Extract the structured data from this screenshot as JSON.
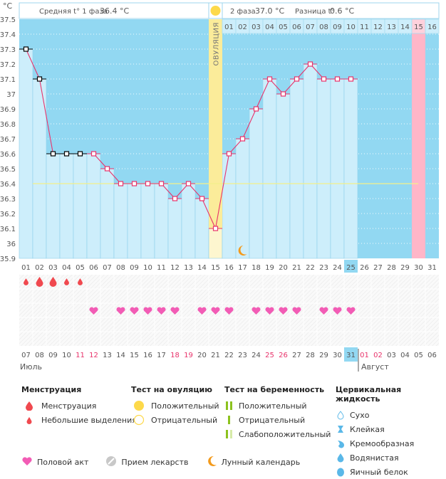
{
  "header": {
    "unit": "°C",
    "phase1_label": "Средняя t° 1 фаза",
    "phase1_value": "36.4 °C",
    "phase2_label": "2 фаза",
    "phase2_value": "37.0 °C",
    "diff_label": "Разница t°",
    "diff_value": "0.6 °C",
    "ovulation_label": "ОВУЛЯЦИЯ"
  },
  "chart_data": {
    "type": "line",
    "title": "",
    "ylabel": "°C",
    "ylim": [
      35.9,
      37.5
    ],
    "yticks": [
      "35.9",
      "36",
      "36.1",
      "36.2",
      "36.3",
      "36.4",
      "36.5",
      "36.6",
      "36.7",
      "36.8",
      "36.9",
      "37",
      "37.1",
      "37.2",
      "37.3",
      "37.4",
      "37.5"
    ],
    "x_cycle_days": [
      "01",
      "02",
      "03",
      "04",
      "05",
      "06",
      "07",
      "08",
      "09",
      "10",
      "11",
      "12",
      "13",
      "14",
      "15",
      "16",
      "17",
      "18",
      "19",
      "20",
      "21",
      "22",
      "23",
      "24",
      "25",
      "26",
      "27",
      "28",
      "29",
      "30",
      "31"
    ],
    "luteal_day_labels": [
      "01",
      "02",
      "03",
      "04",
      "05",
      "06",
      "07",
      "08",
      "09",
      "10",
      "11",
      "12",
      "13",
      "14",
      "15",
      "16"
    ],
    "calendar_dates": [
      "07",
      "08",
      "09",
      "10",
      "11",
      "12",
      "13",
      "14",
      "15",
      "16",
      "17",
      "18",
      "19",
      "20",
      "21",
      "22",
      "23",
      "24",
      "25",
      "26",
      "27",
      "28",
      "29",
      "30",
      "31",
      "01",
      "02",
      "03",
      "04",
      "05",
      "06"
    ],
    "weekend_dates_idx": [
      4,
      5,
      11,
      12,
      18,
      19,
      25,
      26
    ],
    "months": [
      "Июль",
      "Август"
    ],
    "month_start_idx": [
      0,
      25
    ],
    "current_day_idx": 24,
    "series": [
      {
        "name": "Температура",
        "values": [
          37.3,
          37.1,
          36.6,
          36.6,
          36.6,
          36.6,
          36.5,
          36.4,
          36.4,
          36.4,
          36.4,
          36.3,
          36.4,
          36.3,
          36.1,
          36.6,
          36.7,
          36.9,
          37.1,
          37.0,
          37.1,
          37.2,
          37.1,
          37.1,
          37.1
        ]
      }
    ],
    "excluded_points_idx": [
      0,
      1,
      2,
      3,
      4
    ],
    "coverline": 36.4,
    "coverline_end_day_idx": 29,
    "ovulation_day_idx": 14,
    "expected_period_day_idx": 29,
    "menstruation": [
      {
        "day_idx": 0,
        "type": "spotting"
      },
      {
        "day_idx": 1,
        "type": "menstruation"
      },
      {
        "day_idx": 2,
        "type": "menstruation"
      },
      {
        "day_idx": 3,
        "type": "spotting"
      },
      {
        "day_idx": 4,
        "type": "spotting"
      }
    ],
    "intercourse_idx": [
      5,
      7,
      8,
      9,
      10,
      11,
      13,
      14,
      15,
      17,
      18,
      19,
      20,
      22,
      23,
      24
    ],
    "moon_day_idx": 16,
    "colors": {
      "bg": "#92d8f2",
      "filled": "#cdeefb",
      "line": "#e8336b",
      "ovulation": "#fbec9a",
      "ovulation_low": "#fdf6cf",
      "period": "#ffb6c8",
      "coverline": "#f4f08a"
    }
  },
  "legend": {
    "menstruation": {
      "title": "Менструация",
      "items": [
        "Менструация",
        "Небольшие выделения"
      ]
    },
    "ovulation_test": {
      "title": "Тест на овуляцию",
      "items": [
        "Положительный",
        "Отрицательный"
      ]
    },
    "pregnancy_test": {
      "title": "Тест на беременность",
      "items": [
        "Положительный",
        "Отрицательный",
        "Слабоположительный"
      ]
    },
    "cervical_fluid": {
      "title": "Цервикальная жидкость",
      "items": [
        "Сухо",
        "Клейкая",
        "Кремообразная",
        "Водянистая",
        "Яичный белок"
      ]
    },
    "bottom": [
      "Половой акт",
      "Прием лекарств",
      "Лунный календарь"
    ]
  }
}
